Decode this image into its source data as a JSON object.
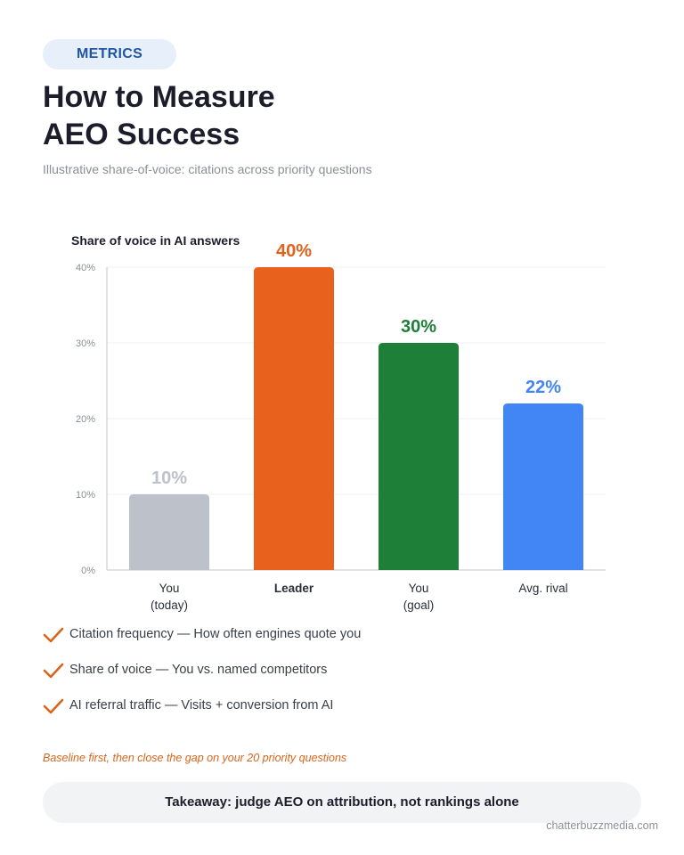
{
  "header": {
    "badge": "METRICS",
    "title_line1": "How to Measure",
    "title_line2": "AEO Success",
    "subtitle": "Illustrative share-of-voice: citations across priority questions"
  },
  "chart_data": {
    "type": "bar",
    "title": "Share of voice in AI answers",
    "categories": [
      [
        "You",
        "(today)"
      ],
      [
        "Leader"
      ],
      [
        "You",
        "(goal)"
      ],
      [
        "Avg. rival"
      ]
    ],
    "values": [
      10,
      40,
      30,
      22
    ],
    "value_labels": [
      "10%",
      "40%",
      "30%",
      "22%"
    ],
    "colors": [
      "#bcc1ca",
      "#e8621d",
      "#1e8038",
      "#4285f4"
    ],
    "label_colors": [
      "#bcc1ca",
      "#e0621d",
      "#1e8038",
      "#4285f4"
    ],
    "bold_category": [
      false,
      true,
      false,
      false
    ],
    "ylim": [
      0,
      40
    ],
    "yticks": [
      0,
      10,
      20,
      30,
      40
    ],
    "ytick_labels": [
      "0%",
      "10%",
      "20%",
      "30%",
      "40%"
    ],
    "grid": true,
    "xlabel": "",
    "ylabel": ""
  },
  "metrics": [
    "Citation frequency — How often engines quote you",
    "Share of voice — You vs. named competitors",
    "AI referral traffic — Visits + conversion from AI"
  ],
  "note": "Baseline first, then close the gap on your 20 priority questions",
  "takeaway": "Takeaway: judge AEO on attribution, not rankings alone",
  "footer": {
    "site": "chatterbuzzmedia.com"
  },
  "icons": {
    "check": "check-icon",
    "check_color": "#d9651d"
  }
}
